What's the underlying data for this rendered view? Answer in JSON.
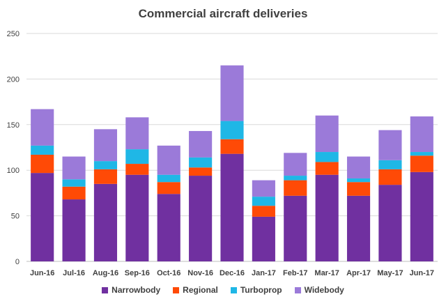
{
  "chart_data": {
    "type": "bar",
    "stacked": true,
    "title": "Commercial aircraft deliveries",
    "categories": [
      "Jun-16",
      "Jul-16",
      "Aug-16",
      "Sep-16",
      "Oct-16",
      "Nov-16",
      "Dec-16",
      "Jan-17",
      "Feb-17",
      "Mar-17",
      "Apr-17",
      "May-17",
      "Jun-17"
    ],
    "series": [
      {
        "name": "Narrowbody",
        "color": "#7030a0",
        "values": [
          97,
          68,
          85,
          95,
          74,
          94,
          118,
          49,
          72,
          95,
          72,
          84,
          98
        ]
      },
      {
        "name": "Regional",
        "color": "#ff4a06",
        "values": [
          20,
          14,
          16,
          12,
          13,
          9,
          16,
          12,
          17,
          14,
          15,
          17,
          18
        ]
      },
      {
        "name": "Turboprop",
        "color": "#1fb7e6",
        "values": [
          10,
          8,
          9,
          16,
          8,
          11,
          20,
          10,
          5,
          11,
          4,
          10,
          4
        ]
      },
      {
        "name": "Widebody",
        "color": "#9b7ad9",
        "values": [
          40,
          25,
          35,
          35,
          32,
          29,
          61,
          18,
          25,
          40,
          24,
          33,
          39
        ]
      }
    ],
    "ylim": [
      0,
      250
    ],
    "yticks": [
      0,
      50,
      100,
      150,
      200,
      250
    ],
    "grid": true,
    "legend_position": "bottom"
  }
}
